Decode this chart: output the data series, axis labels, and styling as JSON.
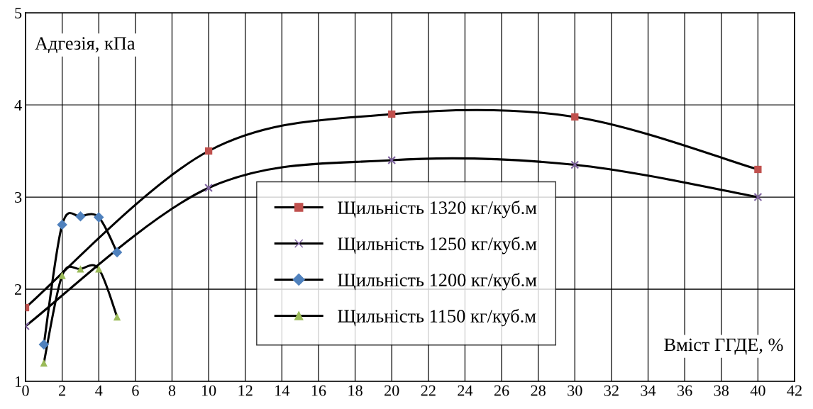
{
  "chart_data": {
    "type": "line",
    "ylabel": "Адгезія, кПа",
    "xlabel": "Вміст ГГДЕ, %",
    "xlim": [
      0,
      42
    ],
    "xticks": [
      0,
      2,
      4,
      6,
      8,
      10,
      12,
      14,
      16,
      18,
      20,
      22,
      24,
      26,
      28,
      30,
      32,
      34,
      36,
      38,
      40,
      42
    ],
    "ylim": [
      1,
      5
    ],
    "yticks": [
      1,
      2,
      3,
      4,
      5
    ],
    "grid": true,
    "legend": "center",
    "line_style": "solid",
    "series": [
      {
        "name": "Щильність 1320 кг/куб.м",
        "color": "#c0504d",
        "marker": "square",
        "x": [
          0,
          10,
          20,
          30,
          40
        ],
        "values": [
          1.8,
          3.5,
          3.9,
          3.87,
          3.3
        ]
      },
      {
        "name": "Щильність 1250 кг/куб.м",
        "color": "#8064a2",
        "marker": "cross",
        "x": [
          0,
          10,
          20,
          30,
          40
        ],
        "values": [
          1.6,
          3.1,
          3.4,
          3.35,
          3.0
        ]
      },
      {
        "name": "Щильність 1200 кг/куб.м",
        "color": "#4f81bd",
        "marker": "diamond",
        "x": [
          1,
          2,
          3,
          4,
          5
        ],
        "values": [
          1.4,
          2.7,
          2.79,
          2.78,
          2.4
        ]
      },
      {
        "name": "Щильність 1150 кг/куб.м",
        "color": "#9bbb59",
        "marker": "triangle",
        "x": [
          1,
          2,
          3,
          4,
          5
        ],
        "values": [
          1.2,
          2.15,
          2.22,
          2.22,
          1.7
        ]
      }
    ]
  }
}
